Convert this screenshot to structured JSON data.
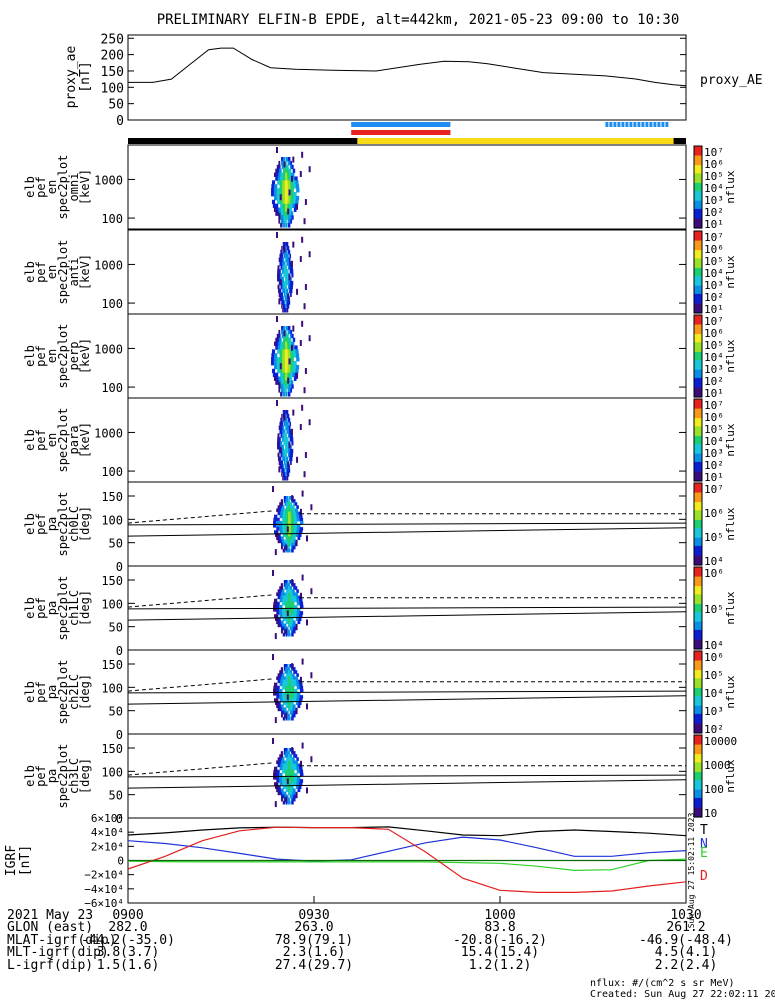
{
  "title": "PRELIMINARY ELFIN-B EPDE, alt=442km, 2021-05-23 09:00 to 10:30",
  "ae_panel": {
    "ylabel": "proxy_ae [nT]",
    "ylabel_lines": [
      "proxy_ae",
      "[nT]"
    ],
    "yticks": [
      "250",
      "200",
      "150",
      "100",
      "50",
      "0"
    ],
    "series_label": "proxy_AE",
    "ylim": [
      0,
      260
    ]
  },
  "bars": {
    "blue_segments": [
      [
        9.36,
        9.52
      ],
      [
        10.17,
        10.27
      ]
    ],
    "red_segments": [
      [
        9.36,
        9.52
      ]
    ],
    "yellow_range": [
      9.37,
      10.28
    ],
    "colors": {
      "blue": "#1e8cf0",
      "red": "#e8221e",
      "yellow": "#f7d917",
      "black": "#000000"
    }
  },
  "spec_panels": [
    {
      "label": [
        "elb",
        "pef",
        "en",
        "spec2plot",
        "omni",
        "[keV]"
      ],
      "yticks": [
        "1000",
        "100"
      ],
      "cbar_ticks": [
        "10⁷",
        "10⁶",
        "10⁵",
        "10⁴",
        "10³",
        "10²",
        "10¹"
      ]
    },
    {
      "label": [
        "elb",
        "pef",
        "en",
        "spec2plot",
        "anti",
        "[keV]"
      ],
      "yticks": [
        "1000",
        "100"
      ],
      "cbar_ticks": [
        "10⁷",
        "10⁶",
        "10⁵",
        "10⁴",
        "10³",
        "10²",
        "10¹"
      ]
    },
    {
      "label": [
        "elb",
        "pef",
        "en",
        "spec2plot",
        "perp",
        "[keV]"
      ],
      "yticks": [
        "1000",
        "100"
      ],
      "cbar_ticks": [
        "10⁷",
        "10⁶",
        "10⁵",
        "10⁴",
        "10³",
        "10²",
        "10¹"
      ]
    },
    {
      "label": [
        "elb",
        "pef",
        "en",
        "spec2plot",
        "para",
        "[keV]"
      ],
      "yticks": [
        "1000",
        "100"
      ],
      "cbar_ticks": [
        "10⁷",
        "10⁶",
        "10⁵",
        "10⁴",
        "10³",
        "10²",
        "10¹"
      ]
    }
  ],
  "pa_panels": [
    {
      "label": [
        "elb",
        "pef",
        "pa",
        "spec2plot",
        "ch0LC",
        "[deg]"
      ],
      "yticks": [
        "150",
        "100",
        "50",
        "0"
      ],
      "cbar_ticks": [
        "10⁷",
        "10⁶",
        "10⁵",
        "10⁴"
      ]
    },
    {
      "label": [
        "elb",
        "pef",
        "pa",
        "spec2plot",
        "ch1LC",
        "[deg]"
      ],
      "yticks": [
        "150",
        "100",
        "50",
        "0"
      ],
      "cbar_ticks": [
        "10⁶",
        "10⁵",
        "10⁴"
      ]
    },
    {
      "label": [
        "elb",
        "pef",
        "pa",
        "spec2plot",
        "ch2LC",
        "[deg]"
      ],
      "yticks": [
        "150",
        "100",
        "50",
        "0"
      ],
      "cbar_ticks": [
        "10⁶",
        "10⁵",
        "10⁴",
        "10³",
        "10²"
      ]
    },
    {
      "label": [
        "elb",
        "pef",
        "pa",
        "spec2plot",
        "ch3LC",
        "[deg]"
      ],
      "yticks": [
        "150",
        "100",
        "50",
        "0"
      ],
      "cbar_ticks": [
        "10000",
        "1000",
        "100",
        "10"
      ]
    }
  ],
  "cbar_label": "nflux",
  "igrf_panel": {
    "ylabel_lines": [
      "IGRF",
      "[nT]"
    ],
    "yticks": [
      "6×10⁴",
      "4×10⁴",
      "2×10⁴",
      "0",
      "−2×10⁴",
      "−4×10⁴",
      "−6×10⁴"
    ],
    "series": [
      {
        "name": "T",
        "color": "#000000"
      },
      {
        "name": "N",
        "color": "#1f33d6"
      },
      {
        "name": "E",
        "color": "#30d22a"
      },
      {
        "name": "D",
        "color": "#e11f1f"
      }
    ],
    "ylim": [
      -60000,
      60000
    ]
  },
  "stamp": "Sun Aug 27 15:02:11 2023",
  "ephemeris": {
    "row_labels": [
      "2021 May 23",
      "GLON (east)",
      "MLAT-igrf(dip)",
      "MLT-igrf(dip)",
      "L-igrf(dip)"
    ],
    "times": [
      "0900",
      "0930",
      "1000",
      "1030"
    ],
    "columns": [
      [
        "282.0",
        "-44.2(-35.0)",
        "3.8(3.7)",
        "1.5(1.6)"
      ],
      [
        "263.0",
        "78.9(79.1)",
        "2.3(1.6)",
        "27.4(29.7)"
      ],
      [
        "83.8",
        "-20.8(-16.2)",
        "15.4(15.4)",
        "1.2(1.2)"
      ],
      [
        "261.2",
        "-46.9(-48.4)",
        "4.5(4.1)",
        "2.2(2.4)"
      ]
    ]
  },
  "footer": {
    "units": "nflux: #/(cm^2 s sr MeV)",
    "created": "Created: Sun Aug 27 22:02:11 2023"
  },
  "chart_data": {
    "type": "line",
    "title": "PRELIMINARY ELFIN-B EPDE, alt=442km, 2021-05-23 09:00 to 10:30",
    "x_range": [
      "09:00",
      "10:30"
    ],
    "x_ticks": [
      "0900",
      "0930",
      "1000",
      "1030"
    ],
    "proxy_ae": {
      "x": [
        "09:00",
        "09:04",
        "09:07",
        "09:10",
        "09:13",
        "09:15",
        "09:17",
        "09:20",
        "09:23",
        "09:27",
        "09:33",
        "09:40",
        "09:47",
        "09:51",
        "09:55",
        "09:58",
        "10:02",
        "10:07",
        "10:12",
        "10:17",
        "10:22",
        "10:25",
        "10:28",
        "10:30"
      ],
      "y": [
        115,
        115,
        125,
        170,
        215,
        220,
        220,
        185,
        160,
        155,
        152,
        150,
        170,
        180,
        178,
        172,
        160,
        145,
        140,
        135,
        125,
        115,
        108,
        105
      ]
    },
    "igrf": {
      "x": [
        0,
        6,
        12,
        18,
        24,
        30,
        36,
        42,
        48,
        54,
        60,
        66,
        72,
        78,
        84,
        90
      ],
      "T": [
        36000,
        39000,
        43000,
        46000,
        47000,
        46500,
        46500,
        47500,
        42000,
        36000,
        35000,
        41000,
        43000,
        41000,
        38500,
        35000
      ],
      "N": [
        28000,
        24000,
        18000,
        10000,
        2000,
        -1000,
        1000,
        13000,
        25000,
        33000,
        29000,
        18000,
        6000,
        6000,
        11000,
        14000
      ],
      "E": [
        -1000,
        -1500,
        -2000,
        -2000,
        -2000,
        -2000,
        -2000,
        -2000,
        -2000,
        -3000,
        -4000,
        -8000,
        -14000,
        -13000,
        0,
        2000
      ],
      "D": [
        -12000,
        6000,
        28000,
        42000,
        47000,
        46500,
        46500,
        44000,
        12000,
        -25000,
        -42000,
        -45000,
        -45000,
        -43000,
        -36000,
        -30000
      ]
    },
    "energy_ylim_keV": [
      60,
      7000
    ],
    "pitch_ylim_deg": [
      0,
      180
    ],
    "colorbar": "nflux #/(cm^2 s sr MeV)"
  }
}
